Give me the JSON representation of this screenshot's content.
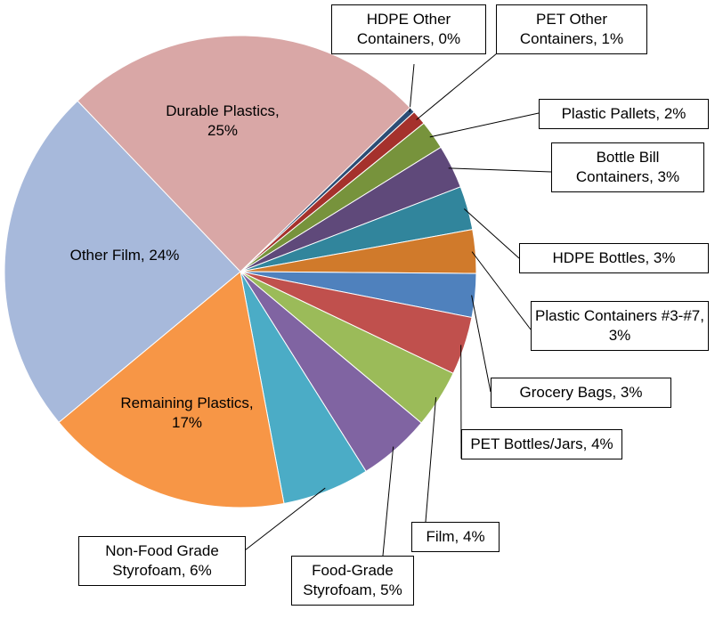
{
  "chart_data": {
    "type": "pie",
    "labels": [
      "HDPE Other Containers, 0%",
      "PET Other Containers, 1%",
      "Plastic Pallets, 2%",
      "Bottle Bill Containers, 3%",
      "HDPE Bottles, 3%",
      "Plastic Containers #3-#7, 3%",
      "Grocery Bags, 3%",
      "PET Bottles/Jars, 4%",
      "Film, 4%",
      "Food-Grade Styrofoam, 5%",
      "Non-Food Grade Styrofoam, 6%",
      "Remaining Plastics, 17%",
      "Other Film, 24%",
      "Durable Plastics, 25%"
    ],
    "values": [
      0.4,
      1,
      2,
      3,
      3,
      3,
      3,
      4,
      4,
      5,
      6,
      17,
      24,
      25
    ],
    "colors": [
      "#2c4d75",
      "#a5312c",
      "#77933c",
      "#5f497a",
      "#31859c",
      "#d07a2b",
      "#4f81bd",
      "#c0504d",
      "#9bbb59",
      "#8064a2",
      "#4bacc6",
      "#f79646",
      "#a7b9db",
      "#d9a7a6"
    ]
  }
}
